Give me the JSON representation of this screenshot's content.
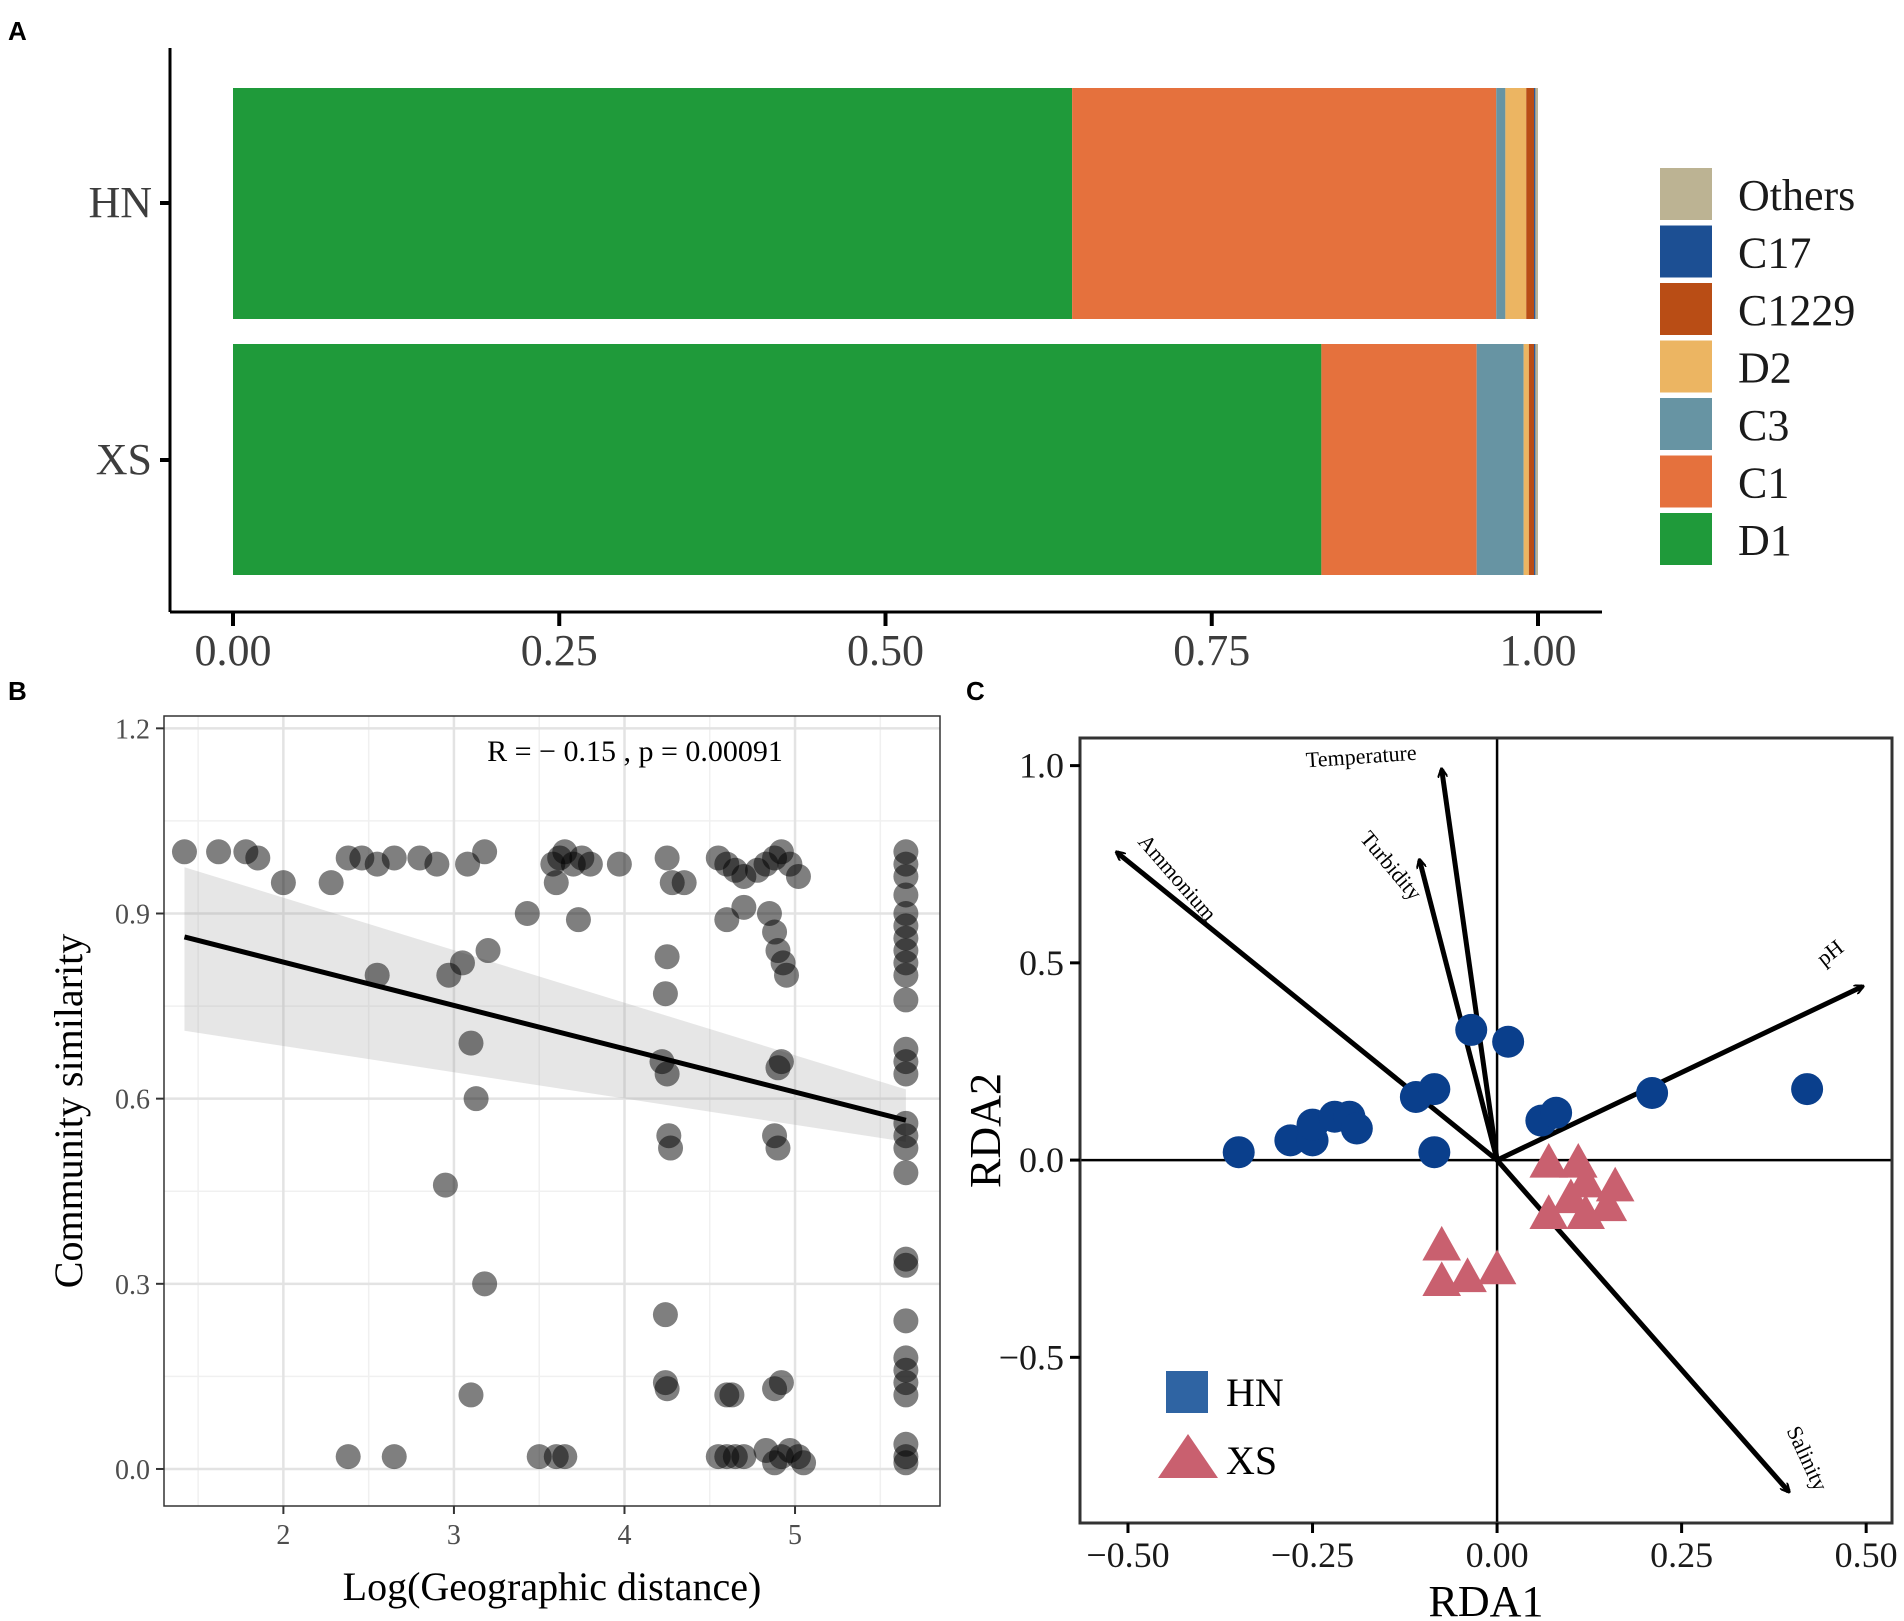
{
  "chart_data": [
    {
      "panel": "A",
      "type": "bar",
      "orientation": "horizontal",
      "stacked": true,
      "categories": [
        "HN",
        "XS"
      ],
      "series": [
        {
          "name": "D1",
          "color": "#1f9a3a",
          "values": [
            0.643,
            0.834
          ]
        },
        {
          "name": "C1",
          "color": "#e5713d",
          "values": [
            0.325,
            0.119
          ]
        },
        {
          "name": "C3",
          "color": "#6794a3",
          "values": [
            0.007,
            0.036
          ]
        },
        {
          "name": "D2",
          "color": "#ecb562",
          "values": [
            0.016,
            0.004
          ]
        },
        {
          "name": "C1229",
          "color": "#b94d15",
          "values": [
            0.006,
            0.004
          ]
        },
        {
          "name": "C17",
          "color": "#1c4f93",
          "values": [
            0.001,
            0.001
          ]
        },
        {
          "name": "Others",
          "color": "#bcb393",
          "values": [
            0.002,
            0.002
          ]
        }
      ],
      "legend_order": [
        "Others",
        "C17",
        "C1229",
        "D2",
        "C3",
        "C1",
        "D1"
      ],
      "xlim": [
        0,
        1
      ],
      "xticks": [
        "0.00",
        "0.25",
        "0.50",
        "0.75",
        "1.00"
      ],
      "legend_position": "right"
    },
    {
      "panel": "B",
      "type": "scatter",
      "xlabel": "Log(Geographic distance)",
      "ylabel": "Community similarity",
      "annotation": "R = − 0.15 , p = 0.00091",
      "xlim": [
        1.3,
        5.85
      ],
      "ylim": [
        -0.06,
        1.22
      ],
      "xticks": [
        "2",
        "3",
        "4",
        "5"
      ],
      "yticks": [
        "0.0",
        "0.3",
        "0.6",
        "0.9",
        "1.2"
      ],
      "fit": {
        "x": [
          1.42,
          5.65
        ],
        "y": [
          0.862,
          0.565
        ],
        "ci_lower": [
          0.71,
          0.53
        ],
        "ci_upper": [
          0.975,
          0.615
        ]
      },
      "points": [
        [
          1.42,
          1.0
        ],
        [
          1.62,
          1.0
        ],
        [
          1.78,
          1.0
        ],
        [
          1.85,
          0.99
        ],
        [
          2.0,
          0.95
        ],
        [
          2.28,
          0.95
        ],
        [
          2.38,
          0.99
        ],
        [
          2.46,
          0.99
        ],
        [
          2.55,
          0.98
        ],
        [
          2.65,
          0.99
        ],
        [
          2.8,
          0.99
        ],
        [
          2.9,
          0.98
        ],
        [
          3.08,
          0.98
        ],
        [
          3.18,
          1.0
        ],
        [
          2.55,
          0.8
        ],
        [
          2.97,
          0.8
        ],
        [
          3.05,
          0.82
        ],
        [
          3.2,
          0.84
        ],
        [
          3.1,
          0.69
        ],
        [
          3.13,
          0.6
        ],
        [
          3.43,
          0.9
        ],
        [
          2.95,
          0.46
        ],
        [
          3.18,
          0.3
        ],
        [
          3.1,
          0.12
        ],
        [
          2.38,
          0.02
        ],
        [
          2.65,
          0.02
        ],
        [
          3.5,
          0.02
        ],
        [
          3.6,
          0.02
        ],
        [
          3.65,
          0.02
        ],
        [
          3.58,
          0.98
        ],
        [
          3.62,
          0.99
        ],
        [
          3.65,
          1.0
        ],
        [
          3.7,
          0.98
        ],
        [
          3.75,
          0.99
        ],
        [
          3.8,
          0.98
        ],
        [
          3.6,
          0.95
        ],
        [
          3.73,
          0.89
        ],
        [
          3.97,
          0.98
        ],
        [
          4.25,
          0.99
        ],
        [
          4.28,
          0.95
        ],
        [
          4.35,
          0.95
        ],
        [
          4.25,
          0.83
        ],
        [
          4.24,
          0.77
        ],
        [
          4.22,
          0.66
        ],
        [
          4.25,
          0.64
        ],
        [
          4.26,
          0.54
        ],
        [
          4.27,
          0.52
        ],
        [
          4.24,
          0.25
        ],
        [
          4.24,
          0.14
        ],
        [
          4.25,
          0.13
        ],
        [
          4.55,
          0.99
        ],
        [
          4.6,
          0.98
        ],
        [
          4.65,
          0.97
        ],
        [
          4.7,
          0.96
        ],
        [
          4.78,
          0.97
        ],
        [
          4.83,
          0.98
        ],
        [
          4.88,
          0.99
        ],
        [
          4.92,
          1.0
        ],
        [
          4.97,
          0.98
        ],
        [
          5.02,
          0.96
        ],
        [
          4.6,
          0.89
        ],
        [
          4.7,
          0.91
        ],
        [
          4.85,
          0.9
        ],
        [
          4.88,
          0.87
        ],
        [
          4.9,
          0.84
        ],
        [
          4.93,
          0.82
        ],
        [
          4.95,
          0.8
        ],
        [
          4.92,
          0.66
        ],
        [
          4.9,
          0.65
        ],
        [
          4.88,
          0.54
        ],
        [
          4.9,
          0.52
        ],
        [
          4.6,
          0.12
        ],
        [
          4.63,
          0.12
        ],
        [
          4.88,
          0.13
        ],
        [
          4.92,
          0.14
        ],
        [
          4.55,
          0.02
        ],
        [
          4.6,
          0.02
        ],
        [
          4.65,
          0.02
        ],
        [
          4.7,
          0.02
        ],
        [
          4.83,
          0.03
        ],
        [
          4.88,
          0.01
        ],
        [
          4.92,
          0.02
        ],
        [
          4.97,
          0.03
        ],
        [
          5.02,
          0.02
        ],
        [
          5.05,
          0.01
        ],
        [
          5.65,
          1.0
        ],
        [
          5.65,
          0.98
        ],
        [
          5.65,
          0.96
        ],
        [
          5.65,
          0.93
        ],
        [
          5.65,
          0.9
        ],
        [
          5.65,
          0.88
        ],
        [
          5.65,
          0.86
        ],
        [
          5.65,
          0.84
        ],
        [
          5.65,
          0.82
        ],
        [
          5.65,
          0.8
        ],
        [
          5.65,
          0.76
        ],
        [
          5.65,
          0.68
        ],
        [
          5.65,
          0.66
        ],
        [
          5.65,
          0.64
        ],
        [
          5.65,
          0.56
        ],
        [
          5.65,
          0.54
        ],
        [
          5.65,
          0.52
        ],
        [
          5.65,
          0.48
        ],
        [
          5.65,
          0.34
        ],
        [
          5.65,
          0.33
        ],
        [
          5.65,
          0.24
        ],
        [
          5.65,
          0.18
        ],
        [
          5.65,
          0.16
        ],
        [
          5.65,
          0.14
        ],
        [
          5.65,
          0.12
        ],
        [
          5.65,
          0.04
        ],
        [
          5.65,
          0.02
        ],
        [
          5.65,
          0.01
        ]
      ]
    },
    {
      "panel": "C",
      "type": "scatter",
      "xlabel": "RDA1",
      "ylabel": "RDA2",
      "xlim": [
        -0.565,
        0.535
      ],
      "ylim": [
        -0.92,
        1.07
      ],
      "xticks": [
        {
          "v": -0.5,
          "label": "−0.50"
        },
        {
          "v": -0.25,
          "label": "−0.25"
        },
        {
          "v": 0,
          "label": "0.00"
        },
        {
          "v": 0.25,
          "label": "0.25"
        },
        {
          "v": 0.5,
          "label": "0.50"
        }
      ],
      "yticks": [
        {
          "v": -0.5,
          "label": "−0.5"
        },
        {
          "v": 0,
          "label": "0.0"
        },
        {
          "v": 0.5,
          "label": "0.5"
        },
        {
          "v": 1.0,
          "label": "1.0"
        }
      ],
      "groups": [
        {
          "name": "HN",
          "shape": "circle",
          "color": "#0a3f8c",
          "points": [
            [
              -0.35,
              0.02
            ],
            [
              -0.28,
              0.05
            ],
            [
              -0.25,
              0.05
            ],
            [
              -0.25,
              0.09
            ],
            [
              -0.22,
              0.11
            ],
            [
              -0.2,
              0.11
            ],
            [
              -0.19,
              0.08
            ],
            [
              -0.11,
              0.16
            ],
            [
              -0.085,
              0.18
            ],
            [
              -0.085,
              0.02
            ],
            [
              -0.035,
              0.33
            ],
            [
              0.015,
              0.3
            ],
            [
              0.06,
              0.1
            ],
            [
              0.08,
              0.12
            ],
            [
              0.21,
              0.17
            ],
            [
              0.42,
              0.18
            ]
          ]
        },
        {
          "name": "XS",
          "shape": "triangle",
          "color": "#c9606f",
          "points": [
            [
              -0.075,
              -0.22
            ],
            [
              -0.075,
              -0.31
            ],
            [
              -0.04,
              -0.3
            ],
            [
              0.0,
              -0.28
            ],
            [
              0.07,
              -0.14
            ],
            [
              0.12,
              -0.14
            ],
            [
              0.15,
              -0.12
            ],
            [
              0.12,
              -0.06
            ],
            [
              0.07,
              -0.01
            ],
            [
              0.11,
              -0.01
            ],
            [
              0.16,
              -0.07
            ],
            [
              0.1,
              -0.1
            ]
          ]
        }
      ],
      "vectors": [
        {
          "label": "Temperature",
          "x": -0.075,
          "y": 0.99
        },
        {
          "label": "Turbidity",
          "x": -0.105,
          "y": 0.76
        },
        {
          "label": "Ammonium",
          "x": -0.515,
          "y": 0.78
        },
        {
          "label": "pH",
          "x": 0.495,
          "y": 0.44
        },
        {
          "label": "Salinity",
          "x": 0.395,
          "y": -0.84
        }
      ],
      "legend": [
        {
          "name": "HN",
          "shape": "square"
        },
        {
          "name": "XS",
          "shape": "triangle"
        }
      ],
      "legend_position": "bottom-left"
    }
  ],
  "labels": {
    "panel_a": "A",
    "panel_b": "B",
    "panel_c": "C"
  }
}
